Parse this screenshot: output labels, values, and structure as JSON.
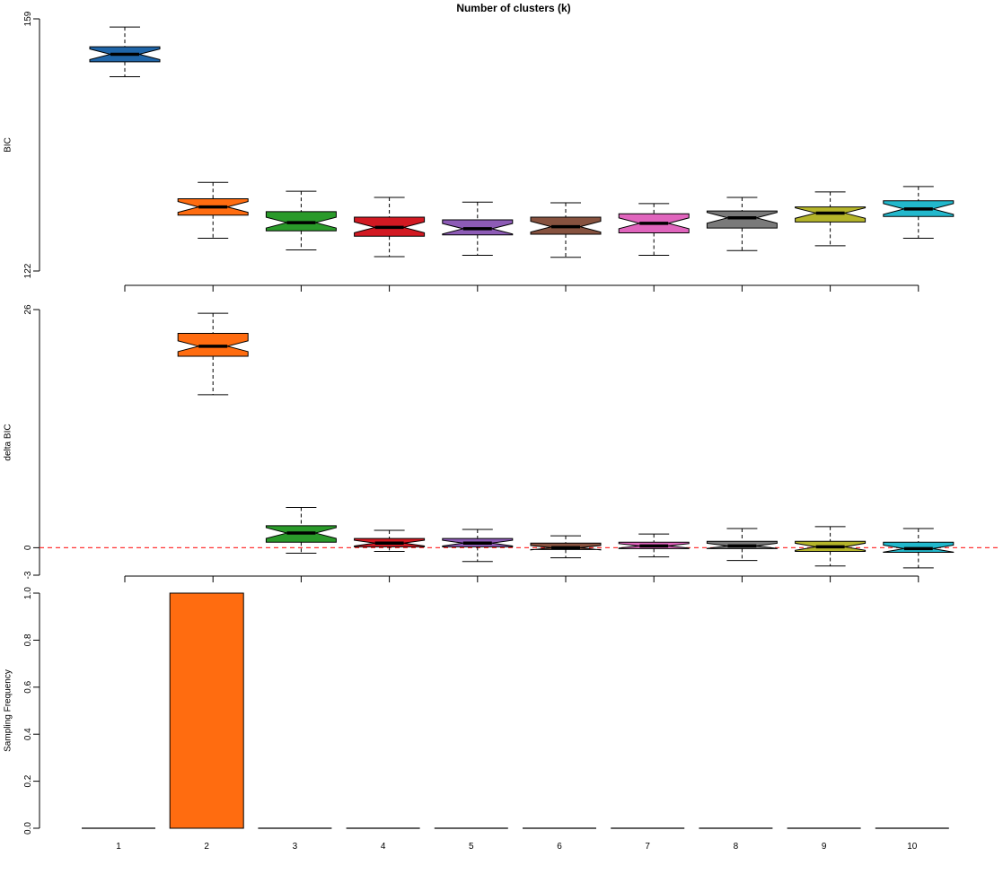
{
  "title": "Number of clusters (k)",
  "colors": {
    "box_fills": [
      "#1f65a8",
      "#ff6c10",
      "#2a9a2a",
      "#d21922",
      "#8d5bb6",
      "#87523f",
      "#e065bd",
      "#7a7a7a",
      "#b5b52a",
      "#22b8cc"
    ],
    "axis": "#000000",
    "reference_line": "#ff3333"
  },
  "chart_data": [
    {
      "type": "boxplot",
      "notched": true,
      "ylabel": "BIC",
      "categories": [
        "1",
        "2",
        "3",
        "4",
        "5",
        "6",
        "7",
        "8",
        "9",
        "10"
      ],
      "ylim": [
        122,
        159
      ],
      "ytick_labels": [
        "122",
        "159"
      ],
      "boxes": [
        {
          "category": "1",
          "whisker_low": 150.5,
          "q1": 152.7,
          "median": 153.8,
          "q3": 154.9,
          "whisker_high": 157.8
        },
        {
          "category": "2",
          "whisker_low": 126.8,
          "q1": 130.2,
          "median": 131.4,
          "q3": 132.6,
          "whisker_high": 135.0
        },
        {
          "category": "3",
          "whisker_low": 125.1,
          "q1": 127.9,
          "median": 129.1,
          "q3": 130.7,
          "whisker_high": 133.7
        },
        {
          "category": "4",
          "whisker_low": 124.1,
          "q1": 127.1,
          "median": 128.4,
          "q3": 129.9,
          "whisker_high": 132.8
        },
        {
          "category": "5",
          "whisker_low": 124.3,
          "q1": 127.3,
          "median": 128.2,
          "q3": 129.5,
          "whisker_high": 132.1
        },
        {
          "category": "6",
          "whisker_low": 124.0,
          "q1": 127.4,
          "median": 128.5,
          "q3": 129.9,
          "whisker_high": 132.0
        },
        {
          "category": "7",
          "whisker_low": 124.3,
          "q1": 127.6,
          "median": 129.0,
          "q3": 130.4,
          "whisker_high": 131.9
        },
        {
          "category": "8",
          "whisker_low": 125.0,
          "q1": 128.3,
          "median": 129.8,
          "q3": 130.8,
          "whisker_high": 132.8
        },
        {
          "category": "9",
          "whisker_low": 125.7,
          "q1": 129.2,
          "median": 130.5,
          "q3": 131.4,
          "whisker_high": 133.6
        },
        {
          "category": "10",
          "whisker_low": 126.8,
          "q1": 130.0,
          "median": 131.1,
          "q3": 132.3,
          "whisker_high": 134.4
        }
      ]
    },
    {
      "type": "boxplot",
      "notched": true,
      "ylabel": "delta BIC",
      "categories": [
        "1",
        "2",
        "3",
        "4",
        "5",
        "6",
        "7",
        "8",
        "9",
        "10"
      ],
      "ylim": [
        -3,
        26
      ],
      "ytick_labels": [
        "-3",
        "0",
        "26"
      ],
      "reference_line": {
        "y": 0,
        "style": "dashed"
      },
      "boxes": [
        {
          "category": "2",
          "whisker_low": 16.7,
          "q1": 20.9,
          "median": 22.0,
          "q3": 23.4,
          "whisker_high": 25.6
        },
        {
          "category": "3",
          "whisker_low": -0.6,
          "q1": 0.6,
          "median": 1.6,
          "q3": 2.4,
          "whisker_high": 4.4
        },
        {
          "category": "4",
          "whisker_low": -0.4,
          "q1": 0.1,
          "median": 0.5,
          "q3": 1.0,
          "whisker_high": 1.9
        },
        {
          "category": "5",
          "whisker_low": -1.5,
          "q1": 0.1,
          "median": 0.5,
          "q3": 1.0,
          "whisker_high": 2.0
        },
        {
          "category": "6",
          "whisker_low": -1.1,
          "q1": -0.2,
          "median": 0.0,
          "q3": 0.5,
          "whisker_high": 1.3
        },
        {
          "category": "7",
          "whisker_low": -1.0,
          "q1": -0.1,
          "median": 0.2,
          "q3": 0.6,
          "whisker_high": 1.5
        },
        {
          "category": "8",
          "whisker_low": -1.4,
          "q1": -0.1,
          "median": 0.2,
          "q3": 0.7,
          "whisker_high": 2.1
        },
        {
          "category": "9",
          "whisker_low": -2.0,
          "q1": -0.4,
          "median": 0.1,
          "q3": 0.7,
          "whisker_high": 2.3
        },
        {
          "category": "10",
          "whisker_low": -2.2,
          "q1": -0.5,
          "median": -0.1,
          "q3": 0.6,
          "whisker_high": 2.1
        }
      ]
    },
    {
      "type": "bar",
      "ylabel": "Sampling Frequency",
      "categories": [
        "1",
        "2",
        "3",
        "4",
        "5",
        "6",
        "7",
        "8",
        "9",
        "10"
      ],
      "values": [
        0,
        1,
        0,
        0,
        0,
        0,
        0,
        0,
        0,
        0
      ],
      "ylim": [
        0,
        1
      ],
      "ytick_labels": [
        "0.0",
        "0.2",
        "0.4",
        "0.6",
        "0.8",
        "1.0"
      ],
      "xtick_labels": [
        "1",
        "2",
        "3",
        "4",
        "5",
        "6",
        "7",
        "8",
        "9",
        "10"
      ]
    }
  ]
}
